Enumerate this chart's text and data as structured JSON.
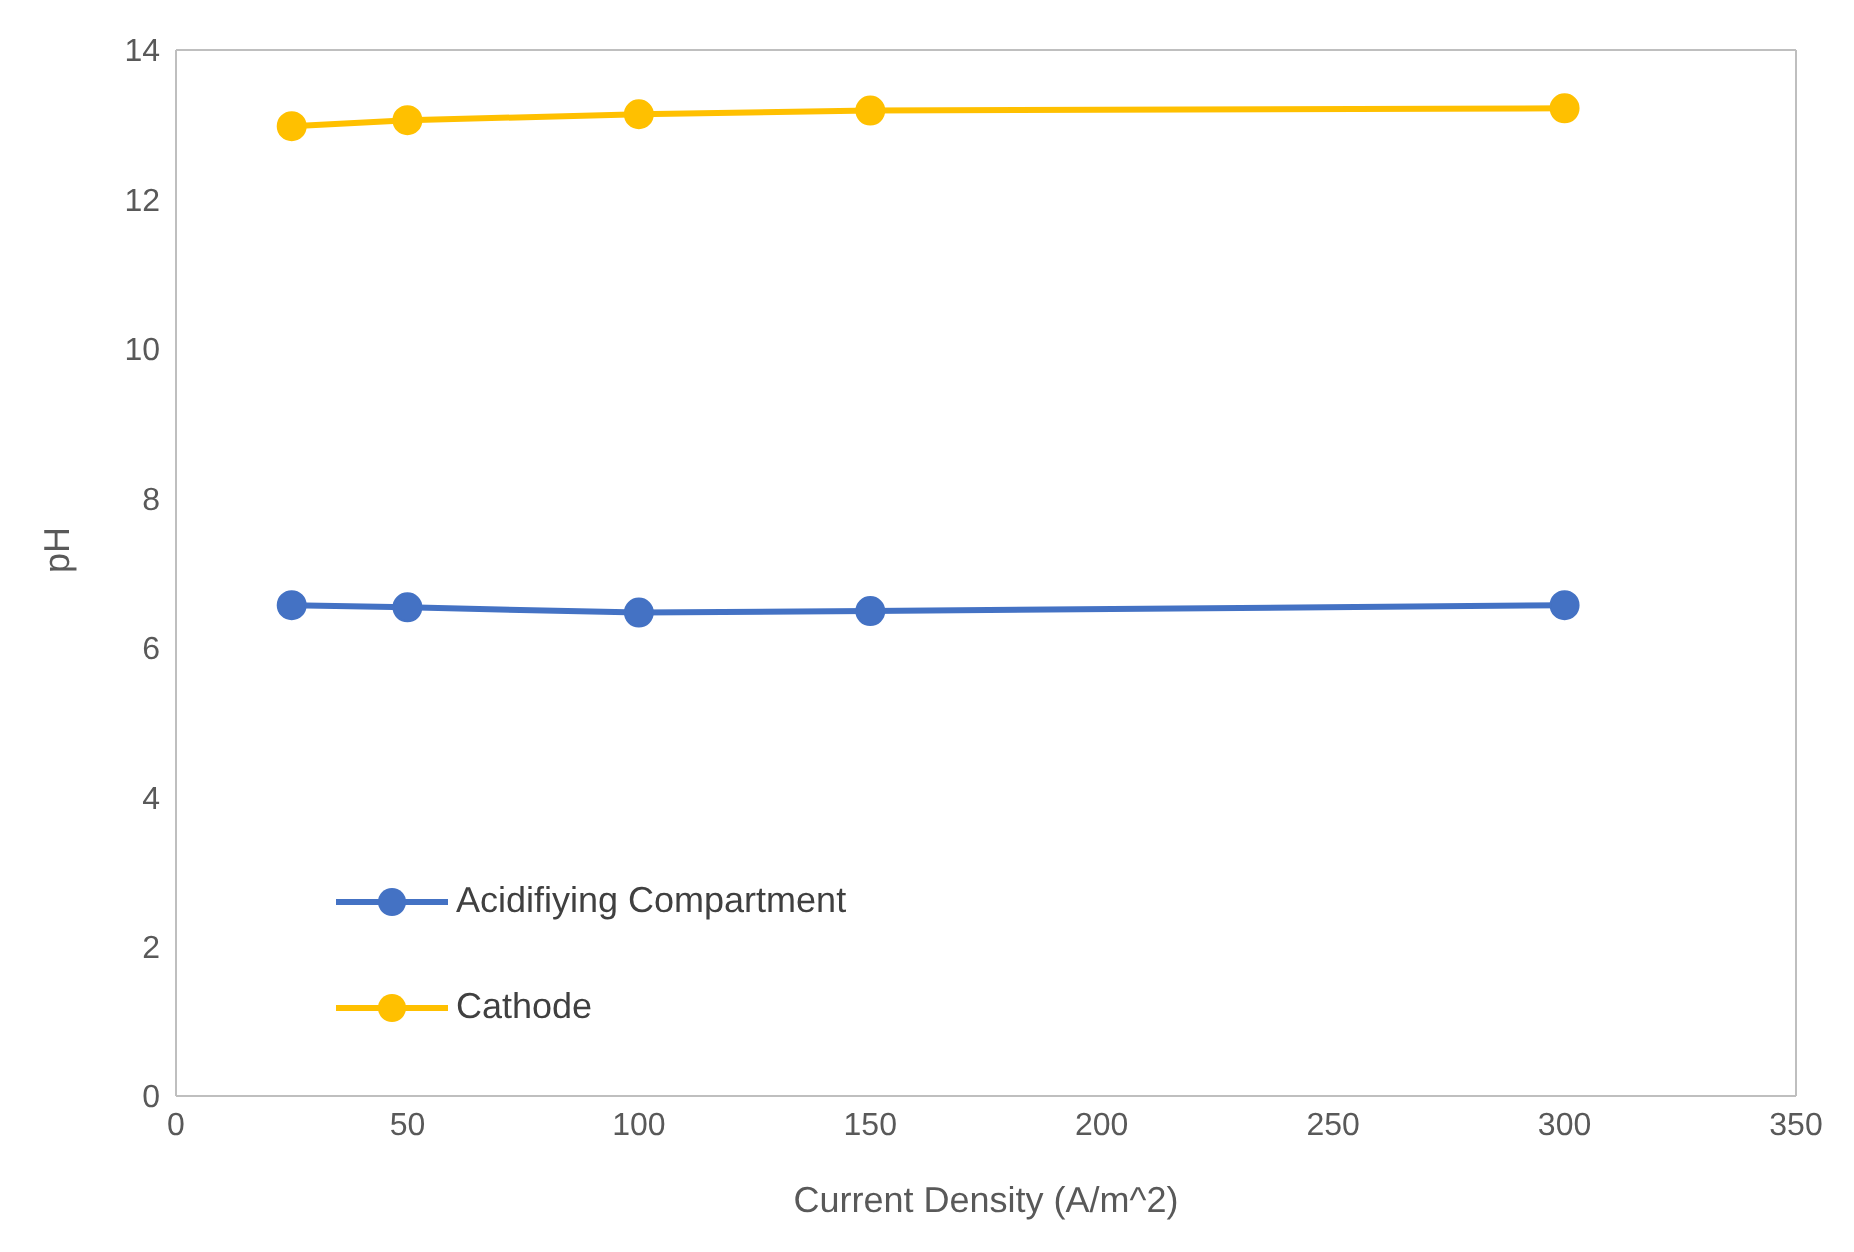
{
  "chart_data": {
    "type": "line",
    "xlabel": "Current Density (A/m^2)",
    "ylabel": "pH",
    "x": [
      25,
      50,
      100,
      150,
      300
    ],
    "series": [
      {
        "name": "Acidifiying Compartment",
        "color": "#4472c4",
        "values": [
          6.57,
          6.54,
          6.47,
          6.49,
          6.57
        ]
      },
      {
        "name": "Cathode",
        "color": "#ffc000",
        "values": [
          12.98,
          13.06,
          13.14,
          13.19,
          13.22
        ]
      }
    ],
    "xlim": [
      0,
      350
    ],
    "xticks": [
      0,
      50,
      100,
      150,
      200,
      250,
      300,
      350
    ],
    "ylim": [
      0,
      14
    ],
    "yticks": [
      0,
      2,
      4,
      6,
      8,
      10,
      12,
      14
    ],
    "grid": false,
    "legend": "bottom left",
    "marker": "circle",
    "line_style": "solid"
  }
}
